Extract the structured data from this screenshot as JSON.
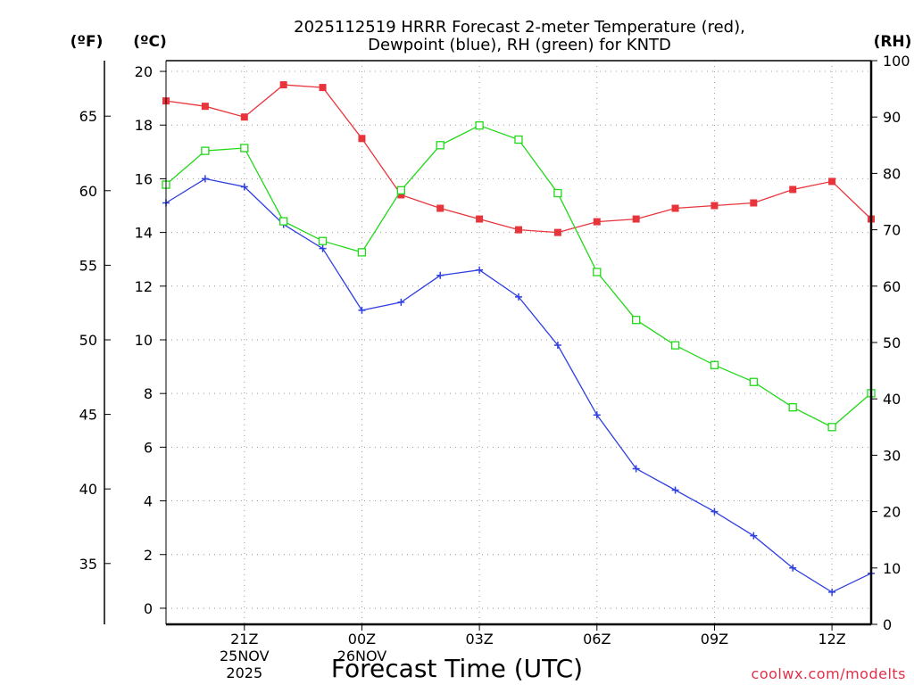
{
  "title_line1": "2025112519 HRRR Forecast 2-meter Temperature (red),",
  "title_line2": "Dewpoint (blue), RH (green) for KNTD",
  "unit_f": "(ºF)",
  "unit_c": "(ºC)",
  "unit_rh": "(RH)",
  "xlabel": "Forecast Time (UTC)",
  "credit": "coolwx.com/modelts",
  "colors": {
    "temp": "#e8353c",
    "dewpoint": "#2f3fe0",
    "rh": "#22d81a"
  },
  "chart_data": {
    "type": "line",
    "title": "2025112519 HRRR Forecast 2-meter Temperature (red), Dewpoint (blue), RH (green) for KNTD",
    "xlabel": "Forecast Time (UTC)",
    "x_hours": [
      19,
      20,
      21,
      22,
      23,
      24,
      25,
      26,
      27,
      28,
      29,
      30,
      31,
      32,
      33,
      34,
      35,
      36,
      37
    ],
    "xlim": [
      19,
      37
    ],
    "x_ticks": [
      {
        "hour": 21,
        "label": "21Z",
        "date": "25NOV",
        "year": "2025"
      },
      {
        "hour": 24,
        "label": "00Z",
        "date": "26NOV"
      },
      {
        "hour": 27,
        "label": "03Z"
      },
      {
        "hour": 30,
        "label": "06Z"
      },
      {
        "hour": 33,
        "label": "09Z"
      },
      {
        "hour": 36,
        "label": "12Z"
      }
    ],
    "left_axis_celsius": {
      "label": "(ºC)",
      "ylim": [
        -0.6,
        20.4
      ],
      "ticks": [
        0,
        2,
        4,
        6,
        8,
        10,
        12,
        14,
        16,
        18,
        20
      ]
    },
    "left_axis_fahrenheit": {
      "label": "(ºF)",
      "ticks": [
        35,
        40,
        45,
        50,
        55,
        60,
        65
      ]
    },
    "right_axis_rh": {
      "label": "(RH)",
      "ylim": [
        0,
        100
      ],
      "ticks": [
        0,
        10,
        20,
        30,
        40,
        50,
        60,
        70,
        80,
        90,
        100
      ]
    },
    "series": [
      {
        "name": "Temperature",
        "axis": "celsius",
        "marker": "filled-square",
        "values": [
          18.9,
          18.7,
          18.3,
          19.5,
          19.4,
          17.5,
          15.4,
          14.9,
          14.5,
          14.1,
          14.0,
          14.4,
          14.5,
          14.9,
          15.0,
          15.1,
          15.6,
          15.9,
          14.5
        ]
      },
      {
        "name": "Dewpoint",
        "axis": "celsius",
        "marker": "plus",
        "values": [
          15.1,
          16.0,
          15.7,
          14.3,
          13.4,
          11.1,
          11.4,
          12.4,
          12.6,
          11.6,
          9.8,
          7.2,
          5.2,
          4.4,
          3.6,
          2.7,
          1.5,
          0.6,
          1.3
        ]
      },
      {
        "name": "RH",
        "axis": "rh",
        "marker": "open-square",
        "values": [
          78,
          84,
          84.5,
          71.5,
          68,
          66,
          77,
          85,
          88.5,
          86,
          76.5,
          62.5,
          54,
          49.5,
          46,
          43,
          38.5,
          35,
          41
        ]
      }
    ]
  }
}
